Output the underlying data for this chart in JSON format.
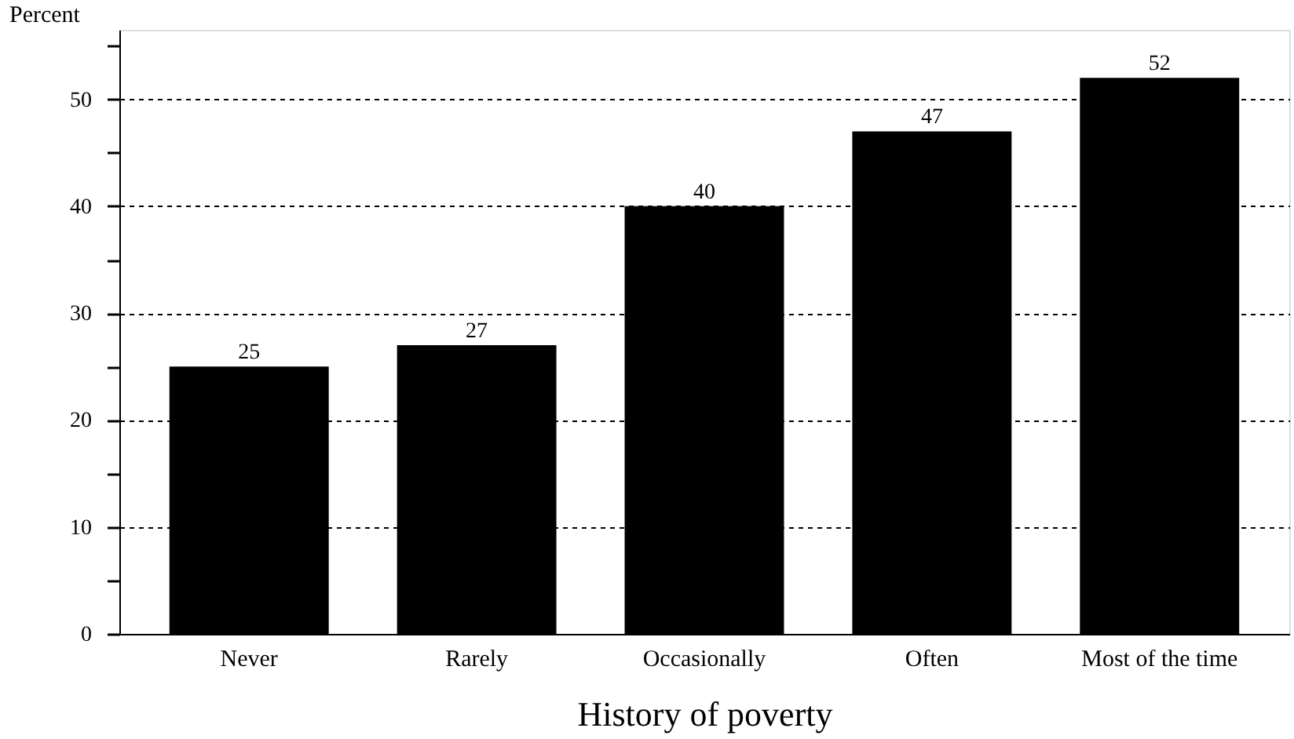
{
  "chart_data": {
    "type": "bar",
    "xlabel": "History  of poverty",
    "ylabel": "Percent",
    "categories": [
      "Never",
      "Rarely",
      "Occasionally",
      "Often",
      "Most of the time"
    ],
    "values": [
      25,
      27,
      40,
      47,
      52
    ],
    "color": "#000000",
    "ylim": [
      0,
      56.5
    ],
    "yticks": [
      0,
      {
        "value": 5,
        "label": null
      },
      10,
      {
        "value": 15,
        "label": null
      },
      20,
      {
        "value": 25,
        "label": null
      },
      30,
      {
        "value": 35,
        "label": null
      },
      40,
      {
        "value": 45,
        "label": null
      },
      50,
      {
        "value": 55,
        "label": null
      }
    ],
    "grid": "y",
    "data_labels": true
  }
}
